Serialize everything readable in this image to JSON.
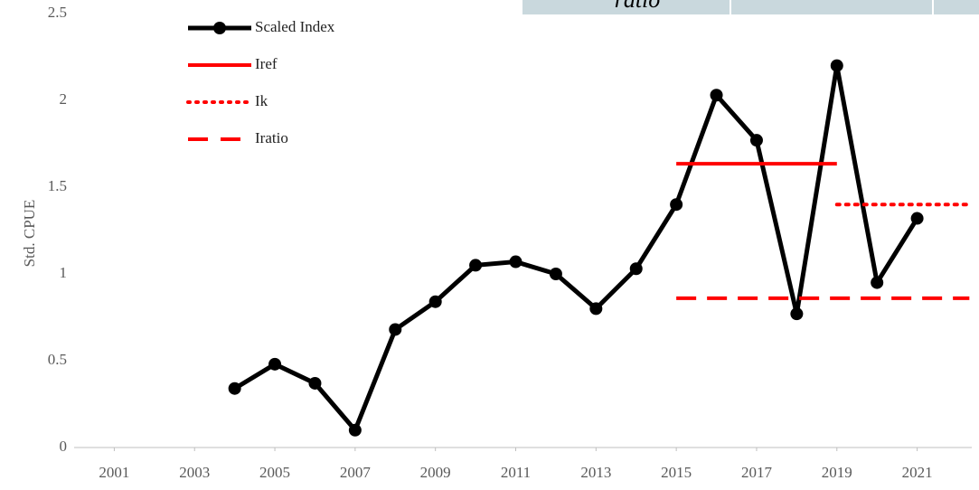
{
  "chart_data": {
    "type": "line",
    "y_label": "Std. CPUE",
    "header_text": "ratio",
    "xlim": [
      2000,
      2022.36
    ],
    "xticks": [
      2001,
      2003,
      2005,
      2007,
      2009,
      2011,
      2013,
      2015,
      2017,
      2019,
      2021
    ],
    "ylim": [
      0,
      2.5
    ],
    "yticks": [
      0,
      0.5,
      1,
      1.5,
      2,
      2.5
    ],
    "grid": false,
    "legend": "top-left",
    "series": [
      {
        "name": "Scaled Index",
        "color": "#000000",
        "style": "solid",
        "marker": "circle",
        "x": [
          2004,
          2005,
          2006,
          2007,
          2008,
          2009,
          2010,
          2011,
          2012,
          2013,
          2014,
          2015,
          2016,
          2017,
          2018,
          2019,
          2020,
          2021
        ],
        "values": [
          0.34,
          0.48,
          0.37,
          0.1,
          0.68,
          0.84,
          1.05,
          1.07,
          1.0,
          0.8,
          1.03,
          1.4,
          2.03,
          1.77,
          0.77,
          2.2,
          0.95,
          1.32
        ]
      },
      {
        "name": "Iref",
        "color": "#ff0000",
        "style": "solid",
        "x": [
          2015,
          2019
        ],
        "values": [
          1.635,
          1.635
        ]
      },
      {
        "name": "Ik",
        "color": "#ff0000",
        "style": "dotted",
        "x": [
          2019,
          2022.3
        ],
        "values": [
          1.4,
          1.4
        ]
      },
      {
        "name": "Iratio",
        "color": "#ff0000",
        "style": "dashed",
        "x": [
          2015,
          2022.3
        ],
        "values": [
          0.86,
          0.86
        ]
      }
    ]
  }
}
